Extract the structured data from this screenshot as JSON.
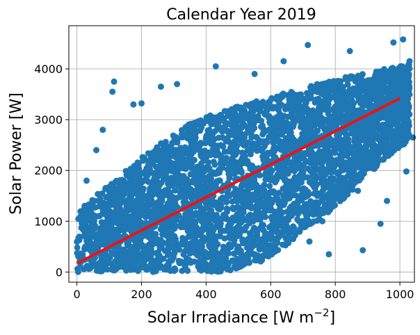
{
  "chart_data": {
    "type": "scatter",
    "title": "Calendar Year 2019",
    "xlabel": "Solar Irradiance [W m",
    "xlabel_sup": "−2",
    "xlabel_end": "]",
    "ylabel": "Solar Power [W]",
    "xlim": [
      -25,
      1045
    ],
    "ylim": [
      -200,
      4850
    ],
    "xticks": [
      0,
      200,
      400,
      600,
      800,
      1000
    ],
    "yticks": [
      0,
      1000,
      2000,
      3000,
      4000
    ],
    "grid": true,
    "colors": {
      "scatter": "#1f77b4",
      "fit_line": "#ee1111",
      "grid": "#b0b0b0"
    },
    "fit_line": {
      "x": [
        0,
        1000
      ],
      "y": [
        170,
        3420
      ]
    },
    "scatter_band": {
      "irradiance_range": [
        0,
        1030
      ],
      "power_lower": [
        0,
        0,
        0,
        0,
        0,
        200,
        700,
        1300,
        2000,
        2600
      ],
      "power_upper": [
        1200,
        1800,
        2400,
        2900,
        3200,
        3400,
        3600,
        3800,
        3950,
        4100
      ]
    },
    "outliers": [
      {
        "x": 30,
        "y": 1800
      },
      {
        "x": 60,
        "y": 2400
      },
      {
        "x": 80,
        "y": 2800
      },
      {
        "x": 115,
        "y": 3750
      },
      {
        "x": 110,
        "y": 3550
      },
      {
        "x": 175,
        "y": 3300
      },
      {
        "x": 200,
        "y": 3320
      },
      {
        "x": 260,
        "y": 3650
      },
      {
        "x": 310,
        "y": 3700
      },
      {
        "x": 430,
        "y": 4050
      },
      {
        "x": 550,
        "y": 3900
      },
      {
        "x": 640,
        "y": 4150
      },
      {
        "x": 715,
        "y": 4470
      },
      {
        "x": 845,
        "y": 4350
      },
      {
        "x": 980,
        "y": 4520
      },
      {
        "x": 1010,
        "y": 4580
      },
      {
        "x": 1030,
        "y": 4150
      },
      {
        "x": 1040,
        "y": 2650
      },
      {
        "x": 1020,
        "y": 1980
      },
      {
        "x": 885,
        "y": 430
      },
      {
        "x": 780,
        "y": 350
      },
      {
        "x": 720,
        "y": 600
      },
      {
        "x": 960,
        "y": 1400
      },
      {
        "x": 940,
        "y": 950
      },
      {
        "x": 870,
        "y": 1600
      },
      {
        "x": 760,
        "y": 1000
      }
    ]
  }
}
